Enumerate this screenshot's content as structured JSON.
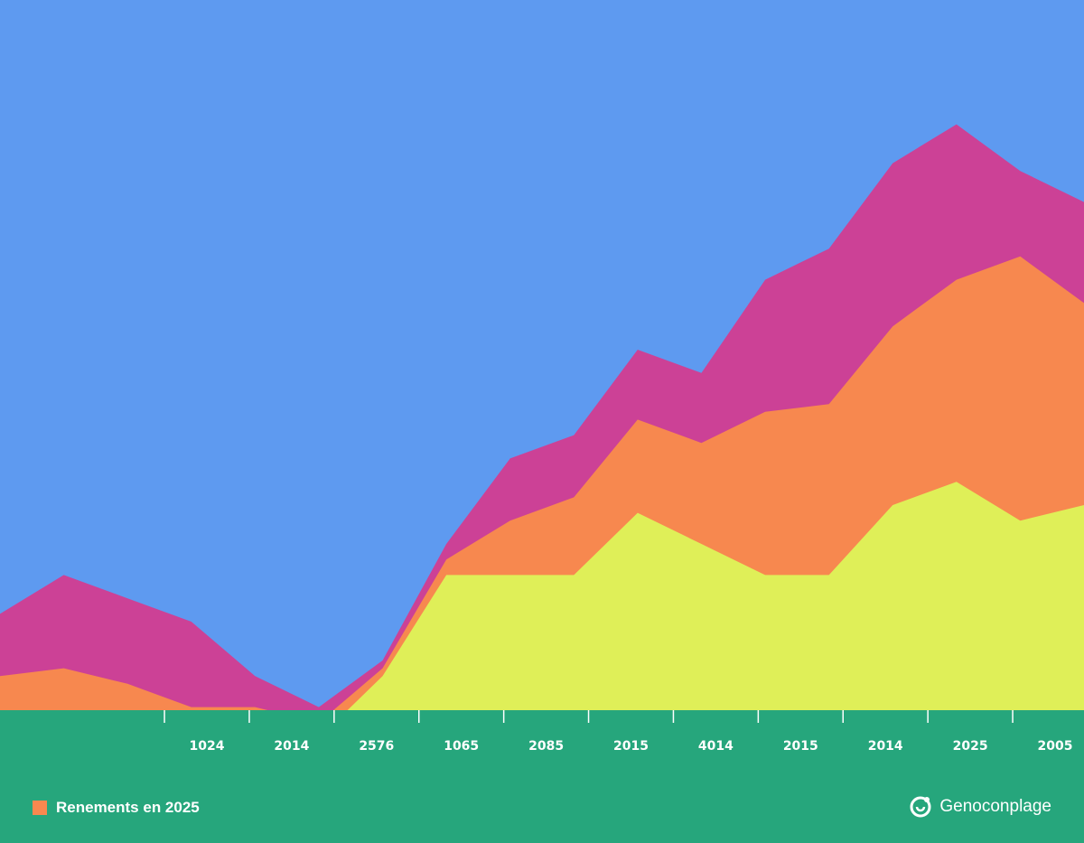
{
  "chart_data": {
    "type": "area",
    "stacked": true,
    "colors": {
      "background": "#5e9af0",
      "floor": "#26a67c",
      "series": [
        "#dfef58",
        "#f7884f",
        "#cc4196"
      ]
    },
    "x": [
      0,
      1,
      2,
      3,
      4,
      5,
      6,
      7,
      8,
      9,
      10,
      11,
      12,
      13,
      14,
      15,
      16,
      17
    ],
    "series": [
      {
        "values": [
          0,
          0,
          0,
          0,
          0,
          0,
          8,
          21,
          21,
          21,
          29,
          25,
          21,
          21,
          30,
          33,
          28,
          30
        ]
      },
      {
        "values": [
          8,
          9,
          7,
          4,
          4,
          2,
          1,
          2,
          7,
          10,
          12,
          13,
          21,
          22,
          23,
          26,
          34,
          26
        ]
      },
      {
        "values": [
          8,
          12,
          11,
          11,
          4,
          2,
          1,
          2,
          8,
          8,
          9,
          9,
          17,
          20,
          21,
          20,
          11,
          13
        ]
      }
    ],
    "ylim": [
      -5,
      95
    ],
    "xticks": [
      "1024",
      "2014",
      "2576",
      "1065",
      "2085",
      "2015",
      "4014",
      "2015",
      "2014",
      "2025",
      "2005"
    ],
    "grid": false,
    "legend_position": "bottom-left"
  },
  "legend": {
    "label": "Renements en 2025"
  },
  "brand": {
    "name": "Genoconplage",
    "icon": "logo-icon"
  }
}
